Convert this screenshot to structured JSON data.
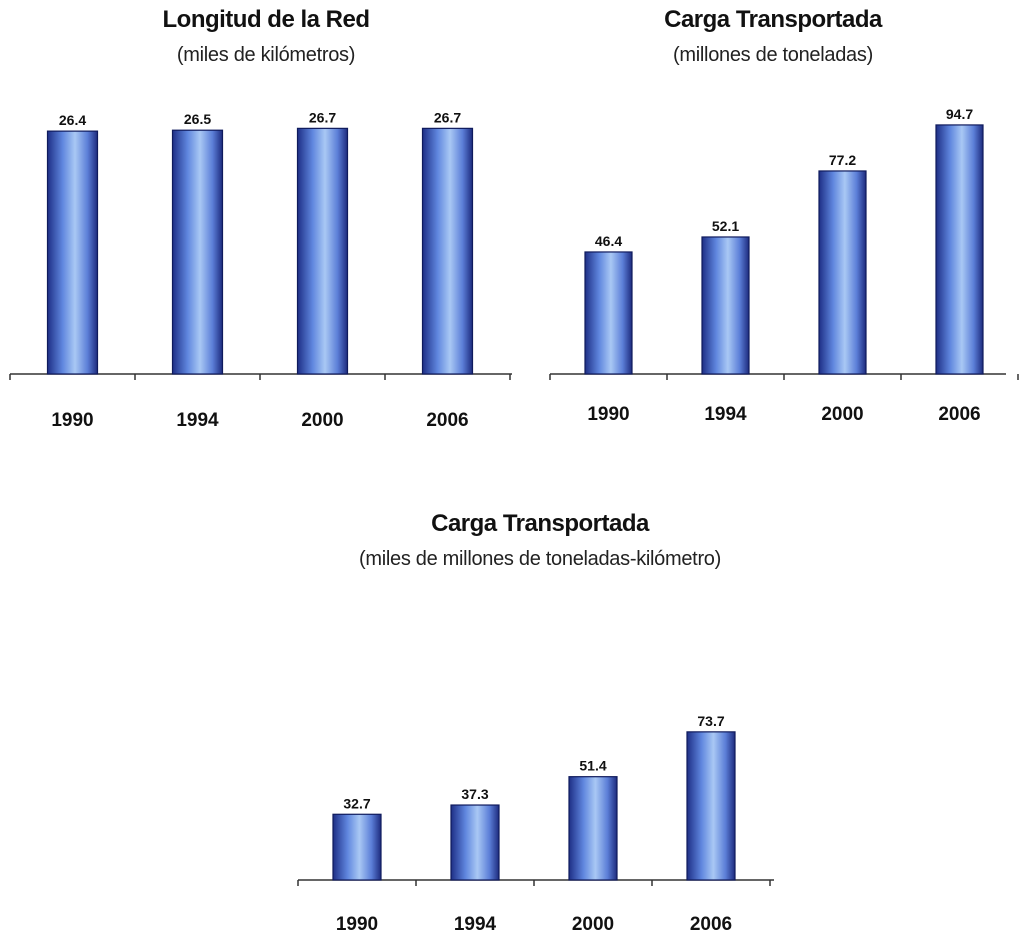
{
  "chart_data": [
    {
      "type": "bar",
      "title": "Longitud de la Red",
      "subtitle": "(miles de kilómetros)",
      "categories": [
        "1990",
        "1994",
        "2000",
        "2006"
      ],
      "values": [
        26.4,
        26.5,
        26.7,
        26.7
      ],
      "labels": [
        "26.4",
        "26.5",
        "26.7",
        "26.7"
      ],
      "ylim": [
        0,
        30
      ],
      "grid": false,
      "bar_color": "#4a6fcf"
    },
    {
      "type": "bar",
      "title": "Carga Transportada",
      "subtitle": "(millones de toneladas)",
      "categories": [
        "1990",
        "1994",
        "2000",
        "2006"
      ],
      "values": [
        46.4,
        52.1,
        77.2,
        94.7
      ],
      "labels": [
        "46.4",
        "52.1",
        "77.2",
        "94.7"
      ],
      "ylim": [
        0,
        110
      ],
      "grid": false,
      "bar_color": "#4a6fcf"
    },
    {
      "type": "bar",
      "title": "Carga Transportada",
      "subtitle": "(miles de millones de toneladas-kilómetro)",
      "categories": [
        "1990",
        "1994",
        "2000",
        "2006"
      ],
      "values": [
        32.7,
        37.3,
        51.4,
        73.7
      ],
      "labels": [
        "32.7",
        "37.3",
        "51.4",
        "73.7"
      ],
      "ylim": [
        0,
        86
      ],
      "grid": false,
      "bar_color": "#4a6fcf"
    }
  ]
}
